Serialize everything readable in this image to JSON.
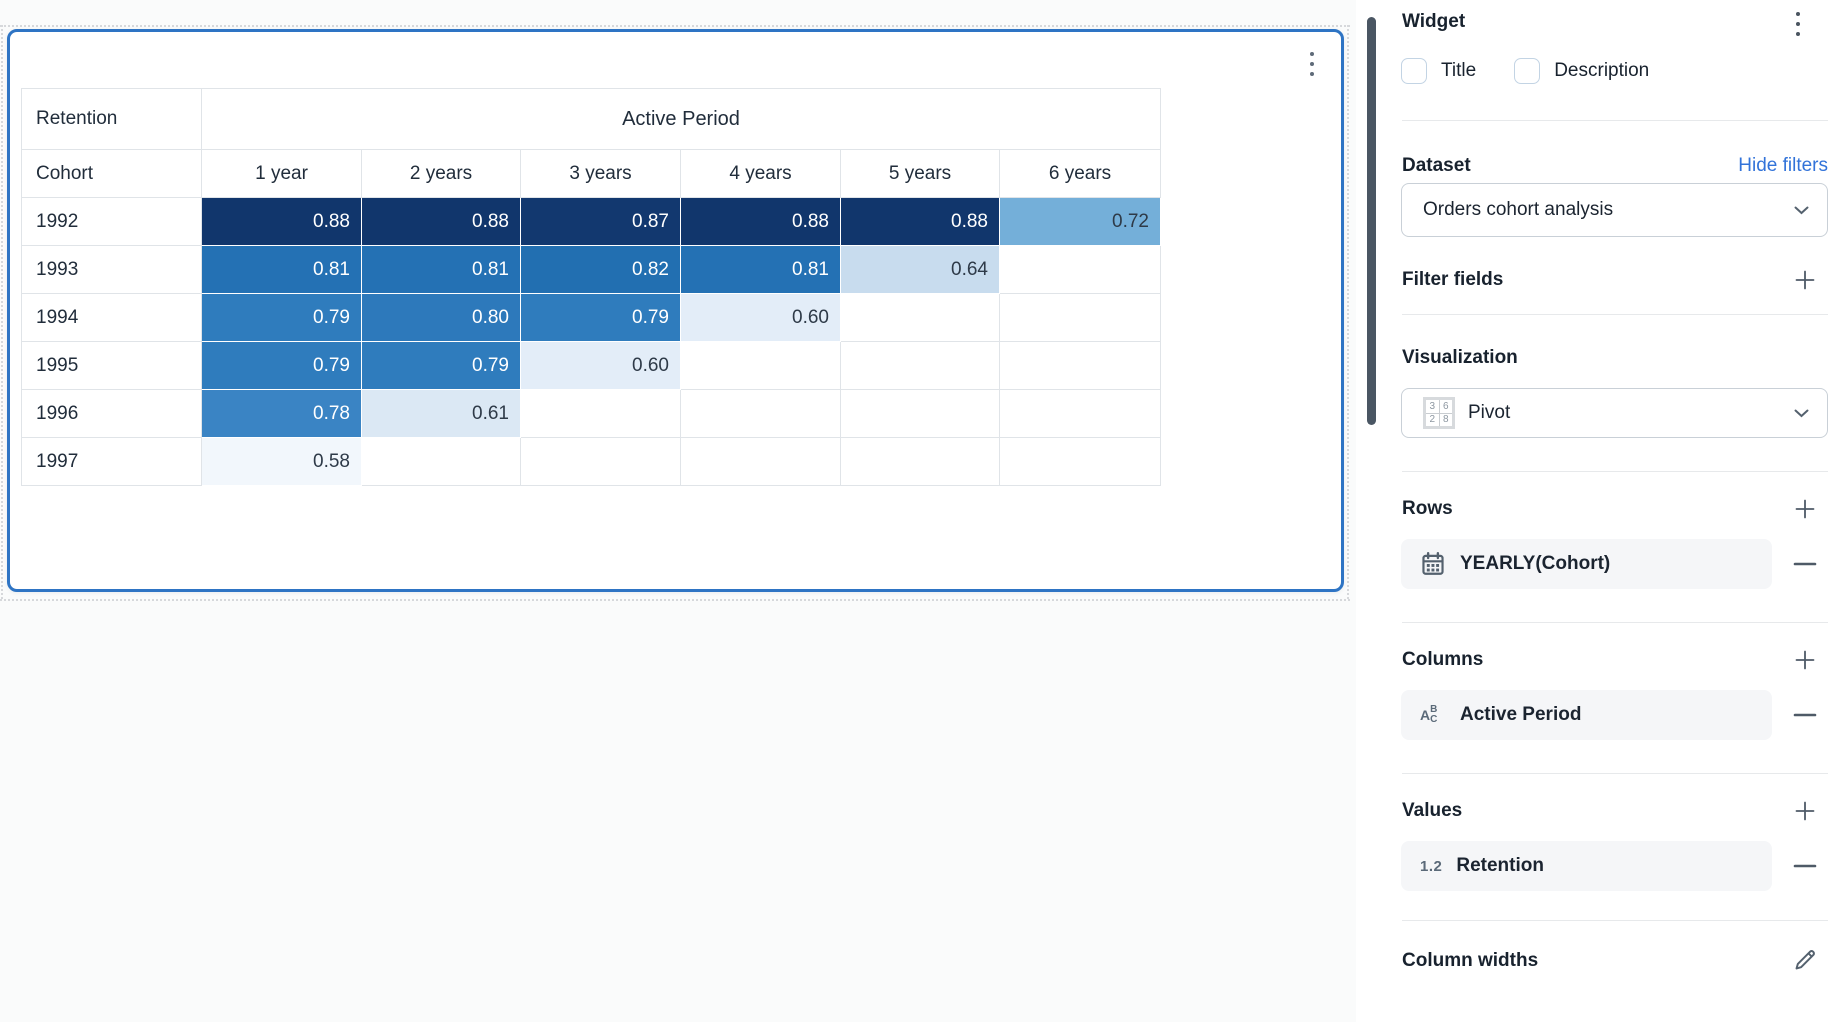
{
  "widget": {
    "pivot_table": {
      "corner_label": "Retention",
      "column_group_label": "Active Period",
      "row_header": "Cohort",
      "columns": [
        "1 year",
        "2 years",
        "3 years",
        "4 years",
        "5 years",
        "6 years"
      ],
      "rows": [
        {
          "label": "1992",
          "values": [
            "0.88",
            "0.88",
            "0.87",
            "0.88",
            "0.88",
            "0.72"
          ]
        },
        {
          "label": "1993",
          "values": [
            "0.81",
            "0.81",
            "0.82",
            "0.81",
            "0.64",
            ""
          ]
        },
        {
          "label": "1994",
          "values": [
            "0.79",
            "0.80",
            "0.79",
            "0.60",
            "",
            ""
          ]
        },
        {
          "label": "1995",
          "values": [
            "0.79",
            "0.79",
            "0.60",
            "",
            "",
            ""
          ]
        },
        {
          "label": "1996",
          "values": [
            "0.78",
            "0.61",
            "",
            "",
            "",
            ""
          ]
        },
        {
          "label": "1997",
          "values": [
            "0.58",
            "",
            "",
            "",
            "",
            ""
          ]
        }
      ],
      "value_colors": {
        "0.88": {
          "bg": "#11366c",
          "fg": "#ffffff"
        },
        "0.87": {
          "bg": "#12386f",
          "fg": "#ffffff"
        },
        "0.82": {
          "bg": "#226fb1",
          "fg": "#ffffff"
        },
        "0.81": {
          "bg": "#2471b4",
          "fg": "#ffffff"
        },
        "0.80": {
          "bg": "#2d79bb",
          "fg": "#ffffff"
        },
        "0.79": {
          "bg": "#2f7cbd",
          "fg": "#ffffff"
        },
        "0.78": {
          "bg": "#3a84c4",
          "fg": "#ffffff"
        },
        "0.72": {
          "bg": "#74afd9",
          "fg": "#2e3a48"
        },
        "0.64": {
          "bg": "#c8dcee",
          "fg": "#2e3a48"
        },
        "0.61": {
          "bg": "#dbe8f4",
          "fg": "#2e3a48"
        },
        "0.60": {
          "bg": "#e3edf8",
          "fg": "#2e3a48"
        },
        "0.58": {
          "bg": "#f2f7fc",
          "fg": "#2e3a48"
        }
      }
    }
  },
  "sidebar": {
    "title": "Widget",
    "checkboxes": [
      {
        "label": "Title",
        "checked": false
      },
      {
        "label": "Description",
        "checked": false
      }
    ],
    "dataset": {
      "heading": "Dataset",
      "link": "Hide filters",
      "selected": "Orders cohort analysis"
    },
    "filter_fields": {
      "heading": "Filter fields"
    },
    "visualization": {
      "heading": "Visualization",
      "selected": "Pivot",
      "pivot_icon_digits": [
        "3",
        "6",
        "2",
        "8"
      ]
    },
    "rows_section": {
      "heading": "Rows",
      "item": {
        "icon": "calendar-icon",
        "label": "YEARLY(Cohort)"
      }
    },
    "columns_section": {
      "heading": "Columns",
      "item": {
        "icon": "abc-field-icon",
        "label": "Active Period"
      }
    },
    "values_section": {
      "heading": "Values",
      "item": {
        "icon": "number-field-icon",
        "icon_text": "1.2",
        "label": "Retention"
      }
    },
    "column_widths": {
      "heading": "Column widths"
    }
  },
  "colors": {
    "selection_border": "#2e74c4",
    "link_blue": "#3273d9",
    "scrollbar": "#4a5663",
    "icon_slate": "#54616e",
    "canvas_bg": "#fafbfb"
  }
}
